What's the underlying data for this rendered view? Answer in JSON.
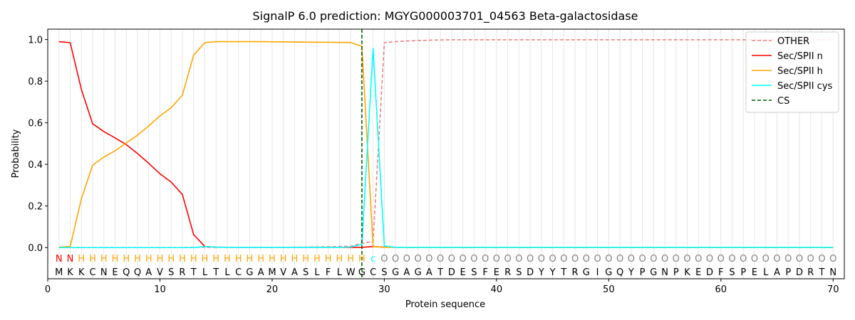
{
  "chart_data": {
    "type": "line",
    "title": "SignalP 6.0 prediction: MGYG000003701_04563 Beta-galactosidase",
    "xlabel": "Protein sequence",
    "ylabel": "Probability",
    "xlim": [
      0,
      71
    ],
    "ylim": [
      -0.15,
      1.05
    ],
    "x_ticks": [
      0,
      10,
      20,
      30,
      40,
      50,
      60,
      70
    ],
    "x_tick_labels": [
      "0",
      "10",
      "20",
      "30",
      "40",
      "50",
      "60",
      "70"
    ],
    "y_ticks": [
      0.0,
      0.2,
      0.4,
      0.6,
      0.8,
      1.0
    ],
    "y_tick_labels": [
      "0.0",
      "0.2",
      "0.4",
      "0.6",
      "0.8",
      "1.0"
    ],
    "legend_position": "top-right",
    "sequence": "MKKCNEQQAVSRTLTLCGAMVASLFLWGCSGAGATDESFERSDYYTRGIGQYPGNPKEDFSPELAPDRTN",
    "state_labels": "NNHHHHHHHHHHHHHHHHHHHHHHHHHHCOOOOOOOOOOOOOOOOOOOOOOOOOOOOOOOOOOOOOOOOO",
    "state_colors": {
      "N": "#ff0000",
      "H": "#ffa500",
      "C": "#00ffff",
      "O": "#808080"
    },
    "cleavage_site": 28,
    "series": [
      {
        "name": "OTHER",
        "color": "#f08080",
        "dash": true,
        "values": [
          0.0,
          0.0,
          0.0,
          0.0,
          0.0,
          0.0,
          0.0,
          0.0,
          0.0,
          0.0,
          0.0,
          0.0,
          0.001,
          0.001,
          0.001,
          0.001,
          0.001,
          0.001,
          0.001,
          0.001,
          0.001,
          0.002,
          0.002,
          0.003,
          0.004,
          0.005,
          0.006,
          0.02,
          0.03,
          0.985,
          0.99,
          0.993,
          0.995,
          0.997,
          0.998,
          0.999,
          0.999,
          0.999,
          0.999,
          0.999,
          0.999,
          0.999,
          0.999,
          0.999,
          0.999,
          0.999,
          0.999,
          0.999,
          0.999,
          0.999,
          0.999,
          0.999,
          0.999,
          0.999,
          0.999,
          0.999,
          0.999,
          0.999,
          0.999,
          0.999,
          0.999,
          0.999,
          0.999,
          0.999,
          0.999,
          0.999,
          0.999,
          0.999,
          0.999,
          0.999
        ]
      },
      {
        "name": "Sec/SPII n",
        "color": "#ff0000",
        "dash": false,
        "values": [
          0.99,
          0.985,
          0.76,
          0.595,
          0.558,
          0.527,
          0.495,
          0.452,
          0.405,
          0.355,
          0.315,
          0.255,
          0.063,
          0.005,
          0.002,
          0.001,
          0.001,
          0.001,
          0.001,
          0.001,
          0.001,
          0.001,
          0.001,
          0.001,
          0.001,
          0.001,
          0.001,
          0.001,
          0.005,
          0.002,
          0.001,
          0.001,
          0.001,
          0.001,
          0.001,
          0.001,
          0.001,
          0.001,
          0.001,
          0.001,
          0.001,
          0.001,
          0.001,
          0.001,
          0.001,
          0.001,
          0.001,
          0.001,
          0.001,
          0.001,
          0.001,
          0.001,
          0.001,
          0.001,
          0.001,
          0.001,
          0.001,
          0.001,
          0.001,
          0.001,
          0.001,
          0.001,
          0.001,
          0.001,
          0.001,
          0.001,
          0.001,
          0.001,
          0.001,
          0.001
        ]
      },
      {
        "name": "Sec/SPII h",
        "color": "#ffa500",
        "dash": false,
        "values": [
          0.002,
          0.005,
          0.235,
          0.396,
          0.435,
          0.465,
          0.503,
          0.54,
          0.585,
          0.633,
          0.672,
          0.733,
          0.925,
          0.985,
          0.99,
          0.99,
          0.99,
          0.99,
          0.99,
          0.989,
          0.989,
          0.988,
          0.988,
          0.987,
          0.987,
          0.986,
          0.986,
          0.968,
          0.005,
          0.001,
          0.001,
          0.001,
          0.001,
          0.001,
          0.001,
          0.001,
          0.001,
          0.001,
          0.001,
          0.001,
          0.001,
          0.001,
          0.001,
          0.001,
          0.001,
          0.001,
          0.001,
          0.001,
          0.001,
          0.001,
          0.001,
          0.001,
          0.001,
          0.001,
          0.001,
          0.001,
          0.001,
          0.001,
          0.001,
          0.001,
          0.001,
          0.001,
          0.001,
          0.001,
          0.001,
          0.001,
          0.001,
          0.001,
          0.001,
          0.001
        ]
      },
      {
        "name": "Sec/SPII cys",
        "color": "#00ffff",
        "dash": false,
        "values": [
          0.0,
          0.0,
          0.0,
          0.0,
          0.0,
          0.0,
          0.0,
          0.0,
          0.0,
          0.0,
          0.0,
          0.0,
          0.0,
          0.005,
          0.002,
          0.001,
          0.001,
          0.001,
          0.001,
          0.001,
          0.001,
          0.001,
          0.001,
          0.001,
          0.001,
          0.001,
          0.003,
          0.015,
          0.958,
          0.008,
          0.001,
          0.001,
          0.001,
          0.001,
          0.001,
          0.001,
          0.001,
          0.001,
          0.001,
          0.001,
          0.001,
          0.001,
          0.001,
          0.001,
          0.001,
          0.001,
          0.001,
          0.001,
          0.001,
          0.001,
          0.001,
          0.001,
          0.001,
          0.001,
          0.001,
          0.001,
          0.001,
          0.001,
          0.001,
          0.001,
          0.001,
          0.001,
          0.001,
          0.001,
          0.001,
          0.001,
          0.001,
          0.001,
          0.001,
          0.001
        ]
      },
      {
        "name": "CS",
        "color": "#006400",
        "dash": true,
        "vertical": true
      }
    ]
  }
}
